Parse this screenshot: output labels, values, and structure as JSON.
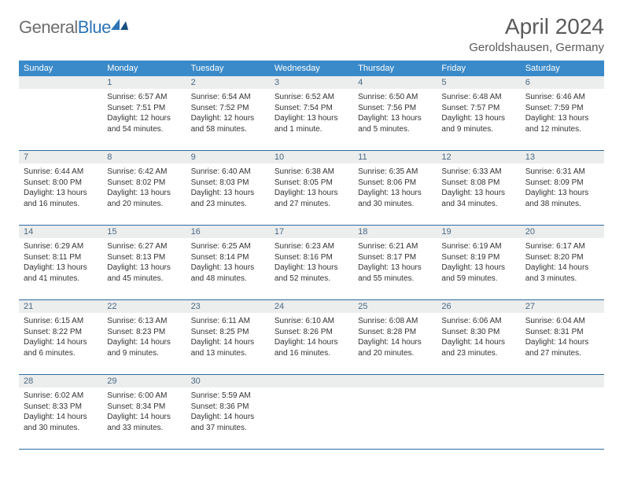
{
  "logo": {
    "text_gray": "General",
    "text_blue": "Blue"
  },
  "title": "April 2024",
  "location": "Geroldshausen, Germany",
  "colors": {
    "header_bg": "#3a8ac9",
    "week_border": "#2d6ca3",
    "daynum_bg": "#eceded",
    "daynum_color": "#4a6a84",
    "logo_gray": "#6e6e6e",
    "logo_blue": "#2d73b8",
    "title_color": "#5a5a5a",
    "text_color": "#333333"
  },
  "weekdays": [
    "Sunday",
    "Monday",
    "Tuesday",
    "Wednesday",
    "Thursday",
    "Friday",
    "Saturday"
  ],
  "weeks": [
    [
      {
        "n": "",
        "lines": []
      },
      {
        "n": "1",
        "lines": [
          "Sunrise: 6:57 AM",
          "Sunset: 7:51 PM",
          "Daylight: 12 hours",
          "and 54 minutes."
        ]
      },
      {
        "n": "2",
        "lines": [
          "Sunrise: 6:54 AM",
          "Sunset: 7:52 PM",
          "Daylight: 12 hours",
          "and 58 minutes."
        ]
      },
      {
        "n": "3",
        "lines": [
          "Sunrise: 6:52 AM",
          "Sunset: 7:54 PM",
          "Daylight: 13 hours",
          "and 1 minute."
        ]
      },
      {
        "n": "4",
        "lines": [
          "Sunrise: 6:50 AM",
          "Sunset: 7:56 PM",
          "Daylight: 13 hours",
          "and 5 minutes."
        ]
      },
      {
        "n": "5",
        "lines": [
          "Sunrise: 6:48 AM",
          "Sunset: 7:57 PM",
          "Daylight: 13 hours",
          "and 9 minutes."
        ]
      },
      {
        "n": "6",
        "lines": [
          "Sunrise: 6:46 AM",
          "Sunset: 7:59 PM",
          "Daylight: 13 hours",
          "and 12 minutes."
        ]
      }
    ],
    [
      {
        "n": "7",
        "lines": [
          "Sunrise: 6:44 AM",
          "Sunset: 8:00 PM",
          "Daylight: 13 hours",
          "and 16 minutes."
        ]
      },
      {
        "n": "8",
        "lines": [
          "Sunrise: 6:42 AM",
          "Sunset: 8:02 PM",
          "Daylight: 13 hours",
          "and 20 minutes."
        ]
      },
      {
        "n": "9",
        "lines": [
          "Sunrise: 6:40 AM",
          "Sunset: 8:03 PM",
          "Daylight: 13 hours",
          "and 23 minutes."
        ]
      },
      {
        "n": "10",
        "lines": [
          "Sunrise: 6:38 AM",
          "Sunset: 8:05 PM",
          "Daylight: 13 hours",
          "and 27 minutes."
        ]
      },
      {
        "n": "11",
        "lines": [
          "Sunrise: 6:35 AM",
          "Sunset: 8:06 PM",
          "Daylight: 13 hours",
          "and 30 minutes."
        ]
      },
      {
        "n": "12",
        "lines": [
          "Sunrise: 6:33 AM",
          "Sunset: 8:08 PM",
          "Daylight: 13 hours",
          "and 34 minutes."
        ]
      },
      {
        "n": "13",
        "lines": [
          "Sunrise: 6:31 AM",
          "Sunset: 8:09 PM",
          "Daylight: 13 hours",
          "and 38 minutes."
        ]
      }
    ],
    [
      {
        "n": "14",
        "lines": [
          "Sunrise: 6:29 AM",
          "Sunset: 8:11 PM",
          "Daylight: 13 hours",
          "and 41 minutes."
        ]
      },
      {
        "n": "15",
        "lines": [
          "Sunrise: 6:27 AM",
          "Sunset: 8:13 PM",
          "Daylight: 13 hours",
          "and 45 minutes."
        ]
      },
      {
        "n": "16",
        "lines": [
          "Sunrise: 6:25 AM",
          "Sunset: 8:14 PM",
          "Daylight: 13 hours",
          "and 48 minutes."
        ]
      },
      {
        "n": "17",
        "lines": [
          "Sunrise: 6:23 AM",
          "Sunset: 8:16 PM",
          "Daylight: 13 hours",
          "and 52 minutes."
        ]
      },
      {
        "n": "18",
        "lines": [
          "Sunrise: 6:21 AM",
          "Sunset: 8:17 PM",
          "Daylight: 13 hours",
          "and 55 minutes."
        ]
      },
      {
        "n": "19",
        "lines": [
          "Sunrise: 6:19 AM",
          "Sunset: 8:19 PM",
          "Daylight: 13 hours",
          "and 59 minutes."
        ]
      },
      {
        "n": "20",
        "lines": [
          "Sunrise: 6:17 AM",
          "Sunset: 8:20 PM",
          "Daylight: 14 hours",
          "and 3 minutes."
        ]
      }
    ],
    [
      {
        "n": "21",
        "lines": [
          "Sunrise: 6:15 AM",
          "Sunset: 8:22 PM",
          "Daylight: 14 hours",
          "and 6 minutes."
        ]
      },
      {
        "n": "22",
        "lines": [
          "Sunrise: 6:13 AM",
          "Sunset: 8:23 PM",
          "Daylight: 14 hours",
          "and 9 minutes."
        ]
      },
      {
        "n": "23",
        "lines": [
          "Sunrise: 6:11 AM",
          "Sunset: 8:25 PM",
          "Daylight: 14 hours",
          "and 13 minutes."
        ]
      },
      {
        "n": "24",
        "lines": [
          "Sunrise: 6:10 AM",
          "Sunset: 8:26 PM",
          "Daylight: 14 hours",
          "and 16 minutes."
        ]
      },
      {
        "n": "25",
        "lines": [
          "Sunrise: 6:08 AM",
          "Sunset: 8:28 PM",
          "Daylight: 14 hours",
          "and 20 minutes."
        ]
      },
      {
        "n": "26",
        "lines": [
          "Sunrise: 6:06 AM",
          "Sunset: 8:30 PM",
          "Daylight: 14 hours",
          "and 23 minutes."
        ]
      },
      {
        "n": "27",
        "lines": [
          "Sunrise: 6:04 AM",
          "Sunset: 8:31 PM",
          "Daylight: 14 hours",
          "and 27 minutes."
        ]
      }
    ],
    [
      {
        "n": "28",
        "lines": [
          "Sunrise: 6:02 AM",
          "Sunset: 8:33 PM",
          "Daylight: 14 hours",
          "and 30 minutes."
        ]
      },
      {
        "n": "29",
        "lines": [
          "Sunrise: 6:00 AM",
          "Sunset: 8:34 PM",
          "Daylight: 14 hours",
          "and 33 minutes."
        ]
      },
      {
        "n": "30",
        "lines": [
          "Sunrise: 5:59 AM",
          "Sunset: 8:36 PM",
          "Daylight: 14 hours",
          "and 37 minutes."
        ]
      },
      {
        "n": "",
        "lines": []
      },
      {
        "n": "",
        "lines": []
      },
      {
        "n": "",
        "lines": []
      },
      {
        "n": "",
        "lines": []
      }
    ]
  ]
}
